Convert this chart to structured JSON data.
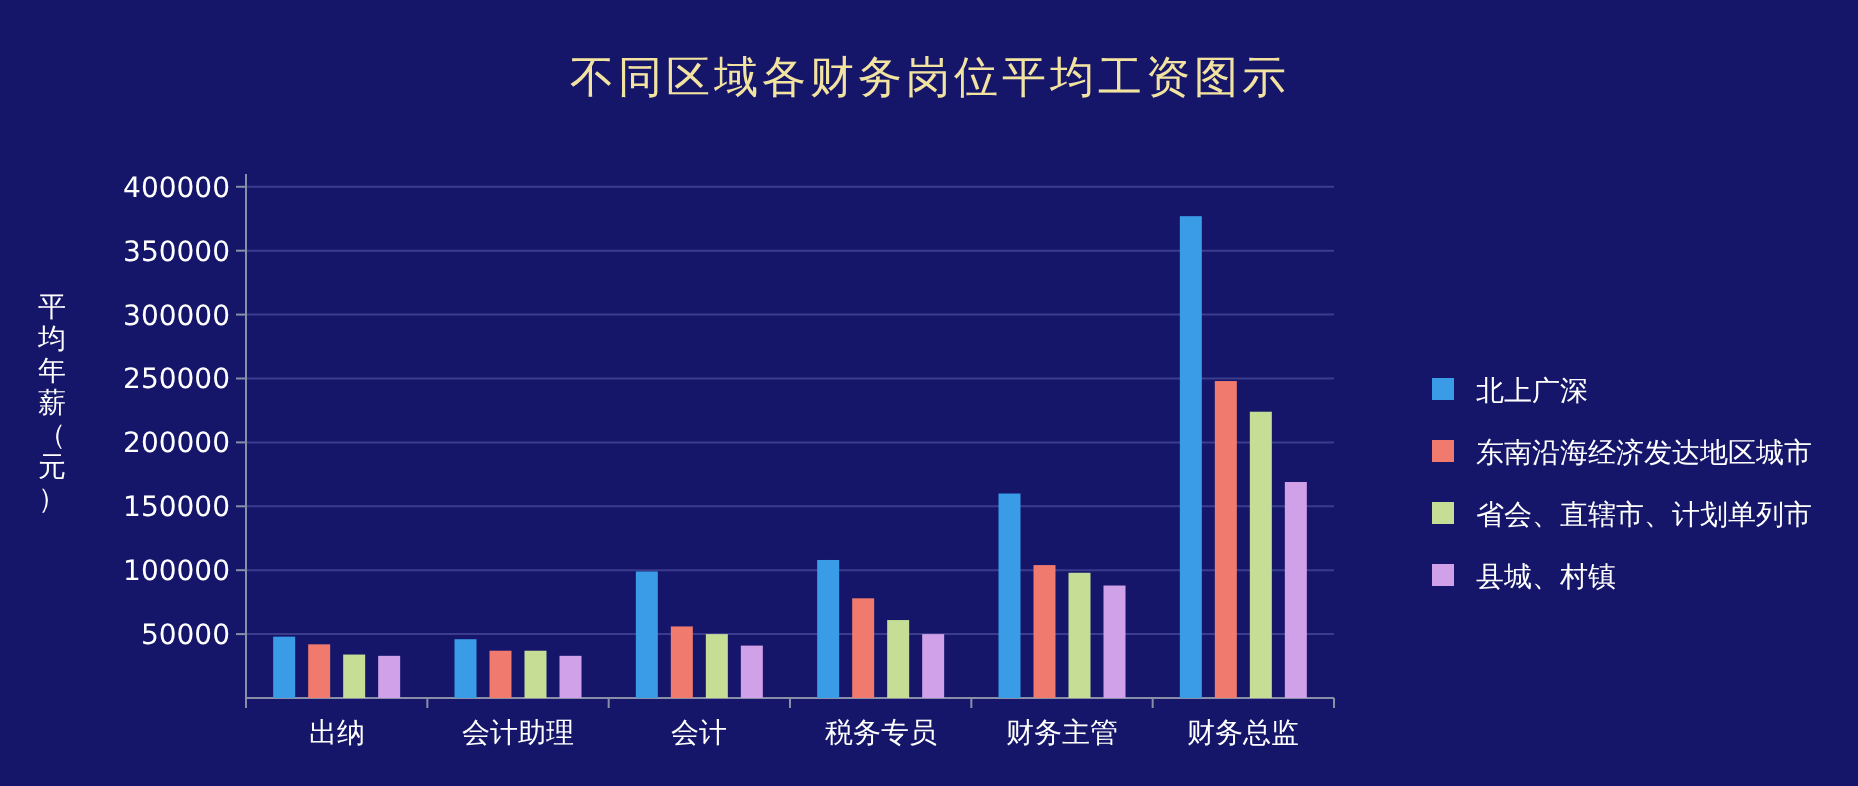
{
  "chart_data": {
    "type": "bar",
    "title": "不同区域各财务岗位平均工资图示",
    "ylabel": "平均年薪（元）",
    "categories": [
      "出纳",
      "会计助理",
      "会计",
      "税务专员",
      "财务主管",
      "财务总监"
    ],
    "series": [
      {
        "name": "北上广深",
        "color": "#3a9be6",
        "values": [
          48000,
          46000,
          99000,
          108000,
          160000,
          377000
        ]
      },
      {
        "name": "东南沿海经济发达地区城市",
        "color": "#f07a6e",
        "values": [
          42000,
          37000,
          56000,
          78000,
          104000,
          248000
        ]
      },
      {
        "name": "省会、直辖市、计划单列市",
        "color": "#c5dd95",
        "values": [
          34000,
          37000,
          50000,
          61000,
          98000,
          224000
        ]
      },
      {
        "name": "县城、村镇",
        "color": "#d0a0e8",
        "values": [
          33000,
          33000,
          41000,
          50000,
          88000,
          169000
        ]
      }
    ],
    "ylim": [
      0,
      410000
    ],
    "yticks": [
      50000,
      100000,
      150000,
      200000,
      250000,
      300000,
      350000,
      400000
    ],
    "grid": "y",
    "legend": "right"
  }
}
